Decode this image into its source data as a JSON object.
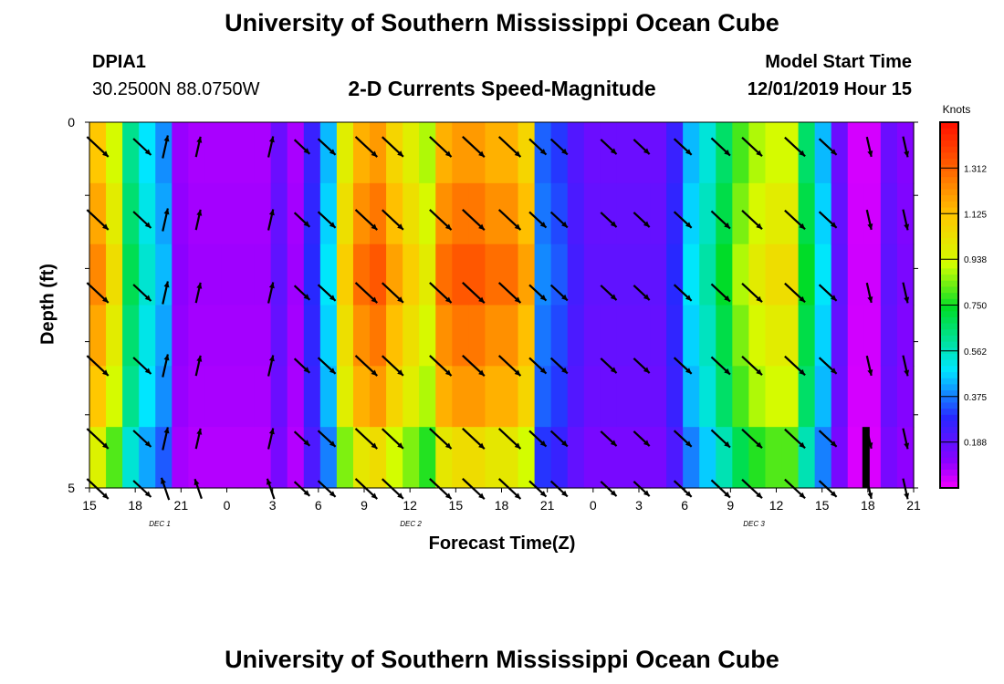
{
  "page": {
    "title_top": "University of Southern Mississippi Ocean Cube",
    "title_bottom": "University of Southern Mississippi Ocean Cube",
    "station_id": "DPIA1",
    "station_coords": "30.2500N 88.0750W",
    "subtitle": "2-D Currents Speed-Magnitude",
    "model_start_label": "Model Start Time",
    "model_start_value": "12/01/2019 Hour 15"
  },
  "chart_data": {
    "type": "heatmap",
    "title": "2-D Currents Speed-Magnitude",
    "xlabel": "Forecast Time(Z)",
    "ylabel": "Depth (ft)",
    "colorbar_unit": "Knots",
    "x_ticks": [
      "15",
      "18",
      "21",
      "0",
      "3",
      "6",
      "9",
      "12",
      "15",
      "18",
      "21",
      "0",
      "3",
      "6",
      "9",
      "12",
      "15",
      "18",
      "21"
    ],
    "day_labels": [
      "DEC 1",
      "DEC 2",
      "DEC 3"
    ],
    "y_range": [
      0,
      5
    ],
    "y_ticks": [
      "0",
      "5"
    ],
    "colorbar_ticks": [
      "1.312",
      "1.125",
      "0.938",
      "0.750",
      "0.562",
      "0.375",
      "0.188"
    ],
    "colorbar_range": [
      0,
      1.5
    ],
    "grid": false,
    "depth_levels": 6,
    "speed_columns_knots": [
      1.25,
      1.05,
      0.7,
      0.55,
      0.45,
      0.12,
      0.1,
      0.1,
      0.1,
      0.1,
      0.1,
      0.2,
      0.1,
      0.3,
      0.5,
      1.1,
      1.3,
      1.35,
      1.2,
      1.1,
      1.0,
      1.3,
      1.35,
      1.35,
      1.3,
      1.3,
      1.2,
      0.4,
      0.35,
      0.25,
      0.2,
      0.2,
      0.2,
      0.2,
      0.2,
      0.3,
      0.5,
      0.6,
      0.75,
      0.9,
      1.0,
      1.05,
      1.05,
      0.75,
      0.5,
      0.2,
      0.05,
      0.05,
      0.2,
      0.15
    ]
  }
}
